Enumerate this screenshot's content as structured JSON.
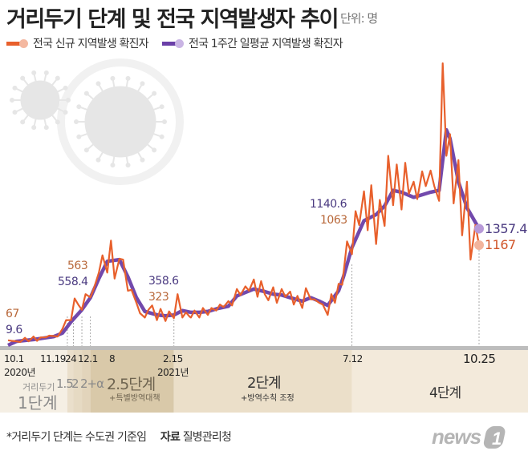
{
  "title": "거리두기 단계 및 전국 지역발생자 추이",
  "unit": "단위: 명",
  "legend": [
    {
      "label": "전국 신규 지역발생 확진자",
      "color": "#e8602c"
    },
    {
      "label": "전국 1주간 일평균 지역발생 확진자",
      "color": "#6a3fa8"
    }
  ],
  "footer": {
    "note": "*거리두기 단계는 수도권 기준임",
    "source_label": "자료",
    "source": "질병관리청",
    "logo": "news1"
  },
  "stages": [
    {
      "pre": "거리두기",
      "label": "1단계"
    },
    {
      "label": "1.5"
    },
    {
      "label": "2"
    },
    {
      "label": "2+α"
    },
    {
      "label": "2.5단계",
      "sub": "+특별방역대책"
    },
    {
      "label": "2단계",
      "sub": "+방역수칙 조정"
    },
    {
      "label": "4단계"
    }
  ],
  "chart_data": {
    "type": "line",
    "title": "거리두기 단계 및 전국 지역발생자 추이",
    "xlabel": "",
    "ylabel": "",
    "xlim": [
      "2020-10-01",
      "2021-10-25"
    ],
    "ylim": [
      0,
      3400
    ],
    "grid": false,
    "legend_placement": "top-left",
    "x_ticks": [
      {
        "date": "2020-10-01",
        "label": "10.1",
        "sub": "2020년"
      },
      {
        "date": "2020-11-19",
        "label": "11.19"
      },
      {
        "date": "2020-11-24",
        "label": "24"
      },
      {
        "date": "2020-12-01",
        "label": "12.1"
      },
      {
        "date": "2020-12-08",
        "label": "8"
      },
      {
        "date": "2021-02-15",
        "label": "2.15",
        "sub": "2021년"
      },
      {
        "date": "2021-07-12",
        "label": "7.12"
      },
      {
        "date": "2021-10-25",
        "label": "10.25"
      }
    ],
    "annotations": [
      {
        "date": "2020-10-01",
        "daily": "67",
        "avg": "9.6"
      },
      {
        "date": "2020-12-08",
        "daily": "563",
        "avg": "558.4"
      },
      {
        "date": "2021-02-15",
        "daily": "323",
        "avg": "358.6"
      },
      {
        "date": "2021-07-12",
        "daily": "1063",
        "avg": "1140.6"
      },
      {
        "date": "2021-10-25",
        "daily": "1167",
        "avg": "1357.4"
      }
    ],
    "series": [
      {
        "name": "전국 신규 지역발생 확진자",
        "color": "#e8602c",
        "points": [
          [
            "2020-10-01",
            67
          ],
          [
            "2020-10-04",
            60
          ],
          [
            "2020-10-08",
            55
          ],
          [
            "2020-10-11",
            45
          ],
          [
            "2020-10-15",
            95
          ],
          [
            "2020-10-18",
            55
          ],
          [
            "2020-10-22",
            110
          ],
          [
            "2020-10-25",
            60
          ],
          [
            "2020-10-28",
            100
          ],
          [
            "2020-11-01",
            100
          ],
          [
            "2020-11-04",
            120
          ],
          [
            "2020-11-08",
            115
          ],
          [
            "2020-11-11",
            110
          ],
          [
            "2020-11-15",
            200
          ],
          [
            "2020-11-18",
            300
          ],
          [
            "2020-11-22",
            300
          ],
          [
            "2020-11-25",
            550
          ],
          [
            "2020-11-28",
            480
          ],
          [
            "2020-12-01",
            420
          ],
          [
            "2020-12-04",
            600
          ],
          [
            "2020-12-08",
            563
          ],
          [
            "2020-12-11",
            670
          ],
          [
            "2020-12-15",
            850
          ],
          [
            "2020-12-18",
            1050
          ],
          [
            "2020-12-22",
            850
          ],
          [
            "2020-12-25",
            1220
          ],
          [
            "2020-12-28",
            780
          ],
          [
            "2021-01-01",
            1010
          ],
          [
            "2021-01-04",
            1000
          ],
          [
            "2021-01-08",
            640
          ],
          [
            "2021-01-11",
            650
          ],
          [
            "2021-01-15",
            500
          ],
          [
            "2021-01-18",
            380
          ],
          [
            "2021-01-22",
            330
          ],
          [
            "2021-01-25",
            420
          ],
          [
            "2021-01-28",
            470
          ],
          [
            "2021-02-01",
            300
          ],
          [
            "2021-02-04",
            430
          ],
          [
            "2021-02-08",
            290
          ],
          [
            "2021-02-11",
            400
          ],
          [
            "2021-02-15",
            323
          ],
          [
            "2021-02-18",
            600
          ],
          [
            "2021-02-22",
            330
          ],
          [
            "2021-02-25",
            390
          ],
          [
            "2021-02-28",
            340
          ],
          [
            "2021-03-01",
            330
          ],
          [
            "2021-03-04",
            410
          ],
          [
            "2021-03-08",
            330
          ],
          [
            "2021-03-11",
            440
          ],
          [
            "2021-03-15",
            360
          ],
          [
            "2021-03-18",
            440
          ],
          [
            "2021-03-22",
            410
          ],
          [
            "2021-03-25",
            480
          ],
          [
            "2021-03-28",
            450
          ],
          [
            "2021-04-01",
            520
          ],
          [
            "2021-04-04",
            470
          ],
          [
            "2021-04-08",
            660
          ],
          [
            "2021-04-11",
            590
          ],
          [
            "2021-04-15",
            690
          ],
          [
            "2021-04-18",
            640
          ],
          [
            "2021-04-22",
            770
          ],
          [
            "2021-04-25",
            570
          ],
          [
            "2021-04-28",
            750
          ],
          [
            "2021-05-01",
            600
          ],
          [
            "2021-05-04",
            530
          ],
          [
            "2021-05-08",
            680
          ],
          [
            "2021-05-11",
            500
          ],
          [
            "2021-05-15",
            660
          ],
          [
            "2021-05-18",
            570
          ],
          [
            "2021-05-22",
            630
          ],
          [
            "2021-05-25",
            480
          ],
          [
            "2021-05-28",
            580
          ],
          [
            "2021-06-01",
            440
          ],
          [
            "2021-06-04",
            670
          ],
          [
            "2021-06-08",
            540
          ],
          [
            "2021-06-11",
            540
          ],
          [
            "2021-06-15",
            500
          ],
          [
            "2021-06-18",
            480
          ],
          [
            "2021-06-22",
            360
          ],
          [
            "2021-06-25",
            600
          ],
          [
            "2021-06-28",
            500
          ],
          [
            "2021-07-01",
            720
          ],
          [
            "2021-07-04",
            710
          ],
          [
            "2021-07-08",
            1210
          ],
          [
            "2021-07-12",
            1063
          ],
          [
            "2021-07-15",
            1560
          ],
          [
            "2021-07-18",
            1400
          ],
          [
            "2021-07-22",
            1790
          ],
          [
            "2021-07-25",
            1340
          ],
          [
            "2021-07-28",
            1860
          ],
          [
            "2021-08-01",
            1180
          ],
          [
            "2021-08-04",
            1690
          ],
          [
            "2021-08-08",
            1390
          ],
          [
            "2021-08-11",
            2200
          ],
          [
            "2021-08-15",
            1630
          ],
          [
            "2021-08-18",
            2100
          ],
          [
            "2021-08-22",
            1580
          ],
          [
            "2021-08-25",
            2120
          ],
          [
            "2021-08-28",
            1760
          ],
          [
            "2021-09-01",
            1900
          ],
          [
            "2021-09-04",
            1700
          ],
          [
            "2021-09-08",
            2020
          ],
          [
            "2021-09-11",
            1850
          ],
          [
            "2021-09-15",
            2030
          ],
          [
            "2021-09-18",
            1850
          ],
          [
            "2021-09-22",
            1680
          ],
          [
            "2021-09-25",
            3270
          ],
          [
            "2021-09-28",
            2200
          ],
          [
            "2021-10-01",
            2450
          ],
          [
            "2021-10-04",
            1650
          ],
          [
            "2021-10-08",
            2150
          ],
          [
            "2021-10-11",
            1280
          ],
          [
            "2021-10-15",
            1900
          ],
          [
            "2021-10-18",
            1000
          ],
          [
            "2021-10-22",
            1400
          ],
          [
            "2021-10-25",
            1167
          ]
        ]
      },
      {
        "name": "전국 1주간 일평균 지역발생 확진자",
        "color": "#6a3fa8",
        "points": [
          [
            "2020-10-01",
            9.6
          ],
          [
            "2020-10-08",
            55
          ],
          [
            "2020-10-15",
            65
          ],
          [
            "2020-10-22",
            75
          ],
          [
            "2020-11-01",
            95
          ],
          [
            "2020-11-08",
            110
          ],
          [
            "2020-11-15",
            150
          ],
          [
            "2020-11-22",
            280
          ],
          [
            "2020-12-01",
            420
          ],
          [
            "2020-12-08",
            558.4
          ],
          [
            "2020-12-15",
            780
          ],
          [
            "2020-12-22",
            980
          ],
          [
            "2021-01-01",
            1000
          ],
          [
            "2021-01-08",
            800
          ],
          [
            "2021-01-15",
            560
          ],
          [
            "2021-01-22",
            400
          ],
          [
            "2021-02-01",
            360
          ],
          [
            "2021-02-08",
            350
          ],
          [
            "2021-02-15",
            358.6
          ],
          [
            "2021-02-22",
            410
          ],
          [
            "2021-03-01",
            390
          ],
          [
            "2021-03-08",
            390
          ],
          [
            "2021-03-15",
            400
          ],
          [
            "2021-03-22",
            430
          ],
          [
            "2021-04-01",
            460
          ],
          [
            "2021-04-08",
            580
          ],
          [
            "2021-04-15",
            620
          ],
          [
            "2021-04-22",
            660
          ],
          [
            "2021-05-01",
            630
          ],
          [
            "2021-05-08",
            600
          ],
          [
            "2021-05-15",
            590
          ],
          [
            "2021-05-22",
            560
          ],
          [
            "2021-06-01",
            520
          ],
          [
            "2021-06-08",
            560
          ],
          [
            "2021-06-15",
            520
          ],
          [
            "2021-06-22",
            470
          ],
          [
            "2021-07-01",
            640
          ],
          [
            "2021-07-05",
            800
          ],
          [
            "2021-07-12",
            1140.6
          ],
          [
            "2021-07-22",
            1450
          ],
          [
            "2021-08-01",
            1520
          ],
          [
            "2021-08-08",
            1620
          ],
          [
            "2021-08-15",
            1800
          ],
          [
            "2021-08-22",
            1780
          ],
          [
            "2021-09-01",
            1720
          ],
          [
            "2021-09-08",
            1750
          ],
          [
            "2021-09-15",
            1780
          ],
          [
            "2021-09-22",
            1800
          ],
          [
            "2021-09-28",
            2500
          ],
          [
            "2021-10-01",
            2400
          ],
          [
            "2021-10-08",
            1900
          ],
          [
            "2021-10-15",
            1600
          ],
          [
            "2021-10-25",
            1357.4
          ]
        ]
      }
    ]
  }
}
